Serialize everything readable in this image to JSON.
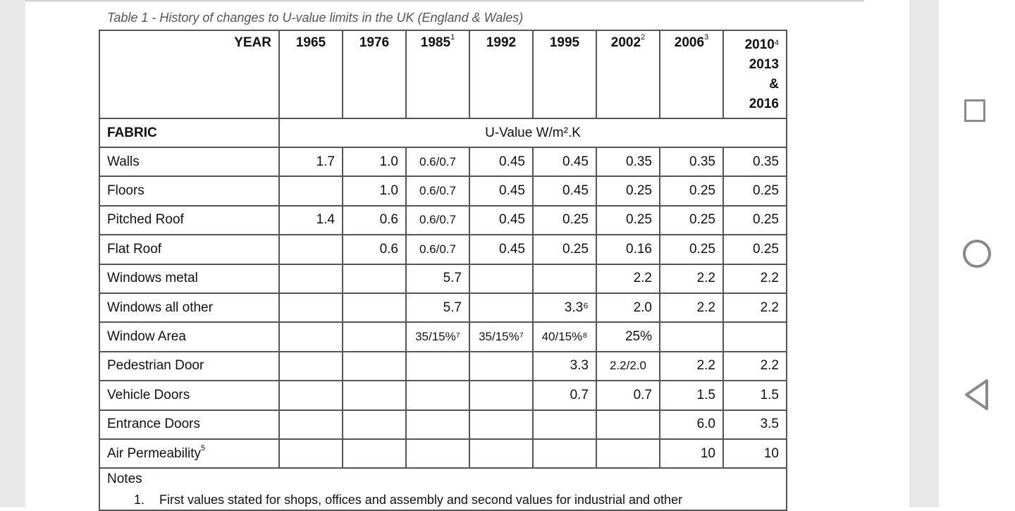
{
  "caption": "Table 1 - History of changes to U-value limits in the UK (England & Wales)",
  "header": {
    "year_label": "YEAR",
    "years": [
      {
        "text": "1965",
        "sup": ""
      },
      {
        "text": "1976",
        "sup": ""
      },
      {
        "text": "1985",
        "sup": "1"
      },
      {
        "text": "1992",
        "sup": ""
      },
      {
        "text": "1995",
        "sup": ""
      },
      {
        "text": "2002",
        "sup": "2"
      },
      {
        "text": "2006",
        "sup": "3"
      }
    ],
    "last_year": {
      "line1": "2010",
      "sup": "4",
      "line2": "2013",
      "line3": "&",
      "line4": "2016"
    }
  },
  "fabric_label": "FABRIC",
  "unit_label": "U-Value W/m².K",
  "rows": [
    {
      "label": "Walls",
      "label_sup": "",
      "cells": [
        "1.7",
        "1.0",
        "0.6/0.7",
        "0.45",
        "0.45",
        "0.35",
        "0.35",
        "0.35"
      ]
    },
    {
      "label": "Floors",
      "label_sup": "",
      "cells": [
        "",
        "1.0",
        "0.6/0.7",
        "0.45",
        "0.45",
        "0.25",
        "0.25",
        "0.25"
      ]
    },
    {
      "label": "Pitched Roof",
      "label_sup": "",
      "cells": [
        "1.4",
        "0.6",
        "0.6/0.7",
        "0.45",
        "0.25",
        "0.25",
        "0.25",
        "0.25"
      ]
    },
    {
      "label": "Flat Roof",
      "label_sup": "",
      "cells": [
        "",
        "0.6",
        "0.6/0.7",
        "0.45",
        "0.25",
        "0.16",
        "0.25",
        "0.25"
      ]
    },
    {
      "label": "Windows metal",
      "label_sup": "",
      "cells": [
        "",
        "",
        "5.7",
        "",
        "",
        "2.2",
        "2.2",
        "2.2"
      ]
    },
    {
      "label": "Windows all other",
      "label_sup": "",
      "cells": [
        "",
        "",
        "5.7",
        "",
        "3.3⁶",
        "2.0",
        "2.2",
        "2.2"
      ]
    },
    {
      "label": "Window Area",
      "label_sup": "",
      "cells": [
        "",
        "",
        "35/15%⁷",
        "35/15%⁷",
        "40/15%⁸",
        "25%",
        "",
        ""
      ]
    },
    {
      "label": "Pedestrian Door",
      "label_sup": "",
      "cells": [
        "",
        "",
        "",
        "",
        "3.3",
        "2.2/2.0",
        "2.2",
        "2.2"
      ]
    },
    {
      "label": "Vehicle Doors",
      "label_sup": "",
      "cells": [
        "",
        "",
        "",
        "",
        "0.7",
        "0.7",
        "1.5",
        "1.5"
      ]
    },
    {
      "label": "Entrance Doors",
      "label_sup": "",
      "cells": [
        "",
        "",
        "",
        "",
        "",
        "",
        "6.0",
        "3.5"
      ]
    },
    {
      "label": "Air Permeability",
      "label_sup": "5",
      "cells": [
        "",
        "",
        "",
        "",
        "",
        "",
        "10",
        "10"
      ]
    }
  ],
  "notes": {
    "title": "Notes",
    "items": [
      {
        "number": "1.",
        "text": "First values stated for shops, offices and assembly and second values for industrial and other"
      }
    ]
  },
  "nav": {
    "recents_icon": "square-icon",
    "home_icon": "circle-icon",
    "back_icon": "triangle-back-icon",
    "color": "#8a8a8a"
  }
}
